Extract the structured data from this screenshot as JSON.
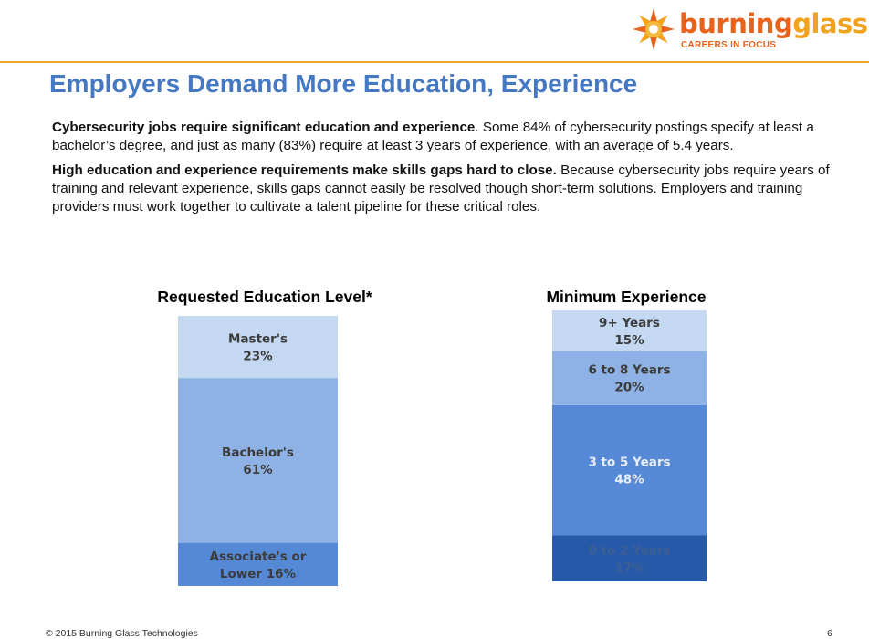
{
  "header": {
    "logo_part1": "burning",
    "logo_part2": "glass",
    "logo_tagline": "CAREERS IN FOCUS"
  },
  "title": "Employers Demand More Education, Experience",
  "paragraphs": [
    {
      "bold": "Cybersecurity jobs require significant education and experience",
      "text": ". Some 84% of cybersecurity postings specify at least a bachelor’s degree, and just as many (83%) require at least 3 years of experience, with an average of 5.4 years."
    },
    {
      "bold": "High education and experience requirements make skills gaps hard to close.",
      "text": " Because cybersecurity jobs require years of training and relevant experience, skills gaps cannot easily be resolved though short-term solutions. Employers and training providers must work together to cultivate a talent pipeline for these critical roles."
    }
  ],
  "chart_data": [
    {
      "type": "bar",
      "stacked": true,
      "title": "Requested Education Level*",
      "categories": [
        "Associate's or Lower",
        "Bachelor's",
        "Master's"
      ],
      "values": [
        16,
        61,
        23
      ],
      "value_labels": [
        "16%",
        "61%",
        "23%"
      ],
      "colors": [
        "#5589d6",
        "#8eb2e5",
        "#c5d8f2"
      ],
      "text_colors": [
        "#3b3b3b",
        "#3b3b3b",
        "#3b3b3b"
      ]
    },
    {
      "type": "bar",
      "stacked": true,
      "title": "Minimum Experience",
      "categories": [
        "0 to 2 Years",
        "3 to 5 Years",
        "6 to 8 Years",
        "9+ Years"
      ],
      "values": [
        17,
        48,
        20,
        15
      ],
      "value_labels": [
        "17%",
        "48%",
        "20%",
        "15%"
      ],
      "colors": [
        "#2659a8",
        "#5589d6",
        "#8eb2e5",
        "#c5d8f2"
      ],
      "text_colors": [
        "#3d5f93",
        "#e8eef8",
        "#3b3b3b",
        "#3b3b3b"
      ]
    }
  ],
  "footer": {
    "copyright": "© 2015 Burning Glass Technologies",
    "page_number": "6"
  }
}
